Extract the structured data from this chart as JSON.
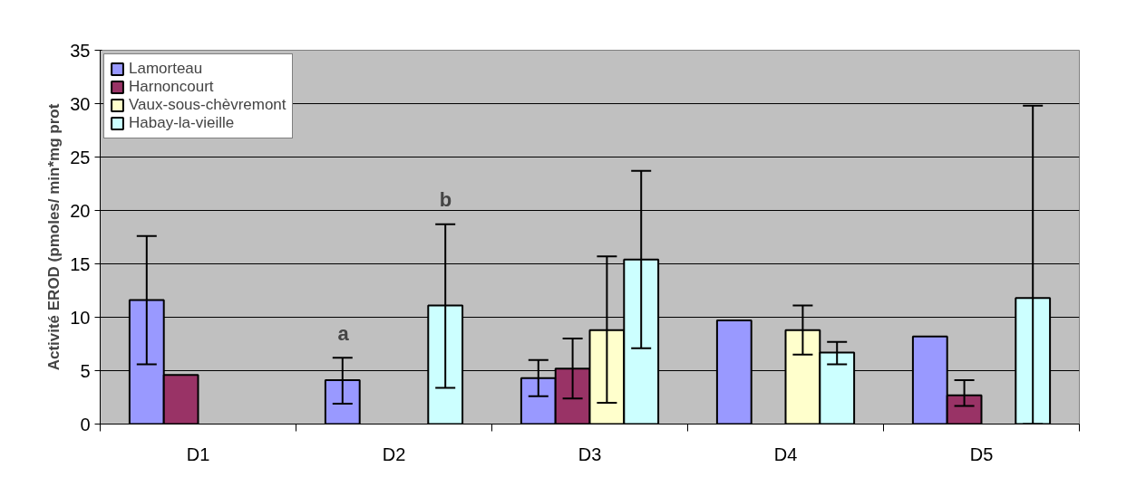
{
  "chart_data": {
    "type": "bar",
    "ylabel": "Activité EROD (pmoles/ min*mg prot",
    "categories": [
      "D1",
      "D2",
      "D3",
      "D4",
      "D5"
    ],
    "series": [
      {
        "name": "Lamorteau",
        "color": "#9999ff",
        "values": [
          11.6,
          4.1,
          4.3,
          9.7,
          8.2
        ],
        "errors": [
          [
            5.6,
            17.6
          ],
          [
            1.9,
            6.2
          ],
          [
            2.6,
            6.0
          ],
          null,
          null
        ]
      },
      {
        "name": "Harnoncourt",
        "color": "#993366",
        "values": [
          4.6,
          null,
          5.2,
          null,
          2.7
        ],
        "errors": [
          null,
          null,
          [
            2.4,
            8.0
          ],
          null,
          [
            1.7,
            4.1
          ]
        ]
      },
      {
        "name": "Vaux-sous-chèvremont",
        "color": "#ffffcc",
        "values": [
          null,
          null,
          8.8,
          8.8,
          null
        ],
        "errors": [
          null,
          null,
          [
            2.0,
            15.7
          ],
          [
            6.5,
            11.1
          ],
          null
        ]
      },
      {
        "name": "Habay-la-vieille",
        "color": "#ccffff",
        "values": [
          null,
          11.1,
          15.4,
          6.7,
          11.8
        ],
        "errors": [
          null,
          [
            3.4,
            18.7
          ],
          [
            7.1,
            23.7
          ],
          [
            5.6,
            7.7
          ],
          [
            0,
            29.8
          ]
        ]
      }
    ],
    "annotations": [
      "a",
      "b"
    ],
    "ylim": [
      0,
      35
    ],
    "yticks": [
      0,
      5,
      10,
      15,
      20,
      25,
      30,
      35
    ],
    "grid": "y",
    "legend": "top left"
  }
}
